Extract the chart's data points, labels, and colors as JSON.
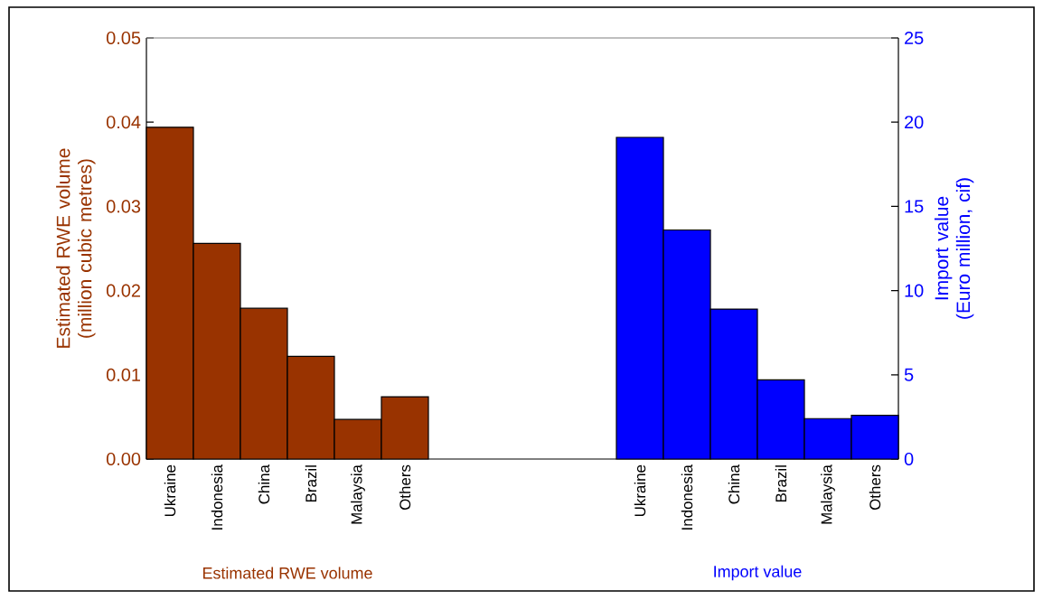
{
  "chart_data": {
    "type": "bar",
    "categories": [
      "Ukraine",
      "Indonesia",
      "China",
      "Brazil",
      "Malaysia",
      "Others",
      null,
      null,
      null,
      null,
      "Ukraine",
      "Indonesia",
      "China",
      "Brazil",
      "Malaysia",
      "Others"
    ],
    "series": [
      {
        "color": "#993300",
        "values": [
          0.0394,
          0.0256,
          0.0179,
          0.0122,
          0.0047,
          0.0074,
          null,
          null,
          null,
          null,
          null,
          null,
          null,
          null,
          null,
          null
        ]
      },
      {
        "color": "#0000ff",
        "axis": "y2",
        "values": [
          null,
          null,
          null,
          null,
          null,
          null,
          null,
          null,
          null,
          null,
          19.1,
          13.6,
          8.9,
          4.7,
          2.4,
          2.6
        ]
      }
    ],
    "xlabel": "Estimated RWE volume",
    "annotations": [
      "Import value"
    ],
    "ylabel": "Estimated RWE volume (million cubic metres)",
    "y2label": "Import value (Euro million, cif)",
    "ylim": [
      0,
      0.05
    ],
    "yticks": [
      {
        "value": 0,
        "label": "0.00"
      },
      {
        "value": 0.01,
        "label": "0.01"
      },
      {
        "value": 0.02,
        "label": "0.02"
      },
      {
        "value": 0.03,
        "label": "0.03"
      },
      {
        "value": 0.04,
        "label": "0.04"
      },
      {
        "value": 0.05,
        "label": "0.05"
      }
    ],
    "y2lim": [
      0,
      25
    ],
    "y2ticks": [
      0,
      5,
      10,
      15,
      20,
      25
    ]
  }
}
